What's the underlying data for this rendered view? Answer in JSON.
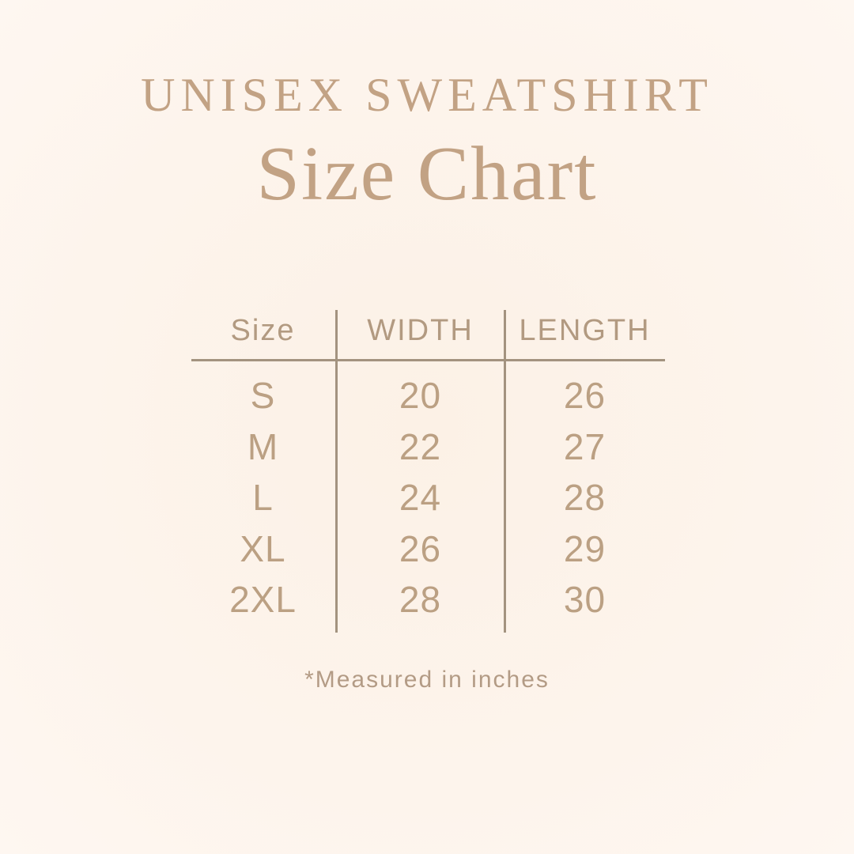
{
  "page": {
    "title": "UNISEX SWEATSHIRT",
    "subtitle": "Size Chart",
    "footnote": "*Measured in inches",
    "colors": {
      "background": "#fdf4ec",
      "title_text": "#c2a284",
      "table_text": "#bba083",
      "divider_line": "#a3937f"
    }
  },
  "table": {
    "headers": [
      "Size",
      "WIDTH",
      "LENGTH"
    ],
    "rows": [
      {
        "size": "S",
        "width": "20",
        "length": "26"
      },
      {
        "size": "M",
        "width": "22",
        "length": "27"
      },
      {
        "size": "L",
        "width": "24",
        "length": "28"
      },
      {
        "size": "XL",
        "width": "26",
        "length": "29"
      },
      {
        "size": "2XL",
        "width": "28",
        "length": "30"
      }
    ]
  },
  "chart_data": {
    "type": "table",
    "title": "UNISEX SWEATSHIRT Size Chart",
    "columns": [
      "Size",
      "WIDTH",
      "LENGTH"
    ],
    "rows": [
      [
        "S",
        20,
        26
      ],
      [
        "M",
        22,
        27
      ],
      [
        "L",
        24,
        28
      ],
      [
        "XL",
        26,
        29
      ],
      [
        "2XL",
        28,
        30
      ]
    ],
    "units": "inches",
    "note": "*Measured in inches",
    "layout": "three-column table with vertical dividers between columns and a horizontal rule under the header"
  }
}
